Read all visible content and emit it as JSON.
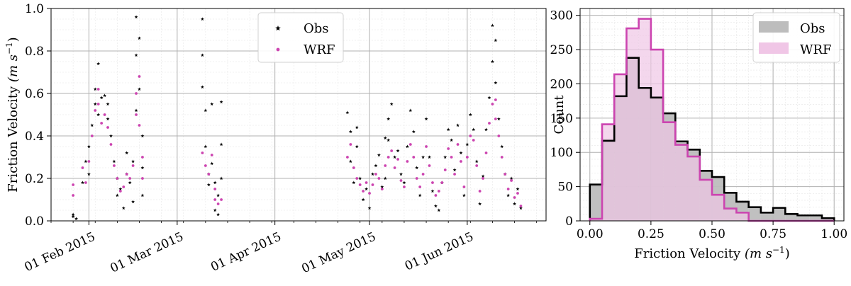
{
  "chart_data": [
    {
      "type": "scatter",
      "xlabel": "",
      "ylabel_main": "Friction Velocity ",
      "ylabel_unit": "(m s",
      "ylabel_exp": "−1",
      "ylabel_close": ")",
      "ylim": [
        0,
        1.0
      ],
      "x_range_dates": [
        "2015-01-20",
        "2015-06-26"
      ],
      "xtick_dates": [
        "2015-02-01",
        "2015-03-01",
        "2015-04-01",
        "2015-05-01",
        "2015-06-01"
      ],
      "xtick_labels": [
        "01 Feb 2015",
        "01 Mar 2015",
        "01 Apr 2015",
        "01 May 2015",
        "01 Jun 2015"
      ],
      "yticks": [
        0.0,
        0.2,
        0.4,
        0.6,
        0.8,
        1.0
      ],
      "ytick_labels": [
        "0.0",
        "0.2",
        "0.4",
        "0.6",
        "0.8",
        "1.0"
      ],
      "grid": true,
      "legend": "top-center",
      "series": [
        {
          "name": "Obs",
          "color": "#000000",
          "marker": "star",
          "points": [
            [
              "2015-01-27",
              0.03
            ],
            [
              "2015-01-27",
              0.02
            ],
            [
              "2015-01-28",
              0.01
            ],
            [
              "2015-01-30",
              0.18
            ],
            [
              "2015-01-31",
              0.28
            ],
            [
              "2015-02-01",
              0.35
            ],
            [
              "2015-02-01",
              0.22
            ],
            [
              "2015-02-02",
              0.45
            ],
            [
              "2015-02-03",
              0.55
            ],
            [
              "2015-02-03",
              0.62
            ],
            [
              "2015-02-04",
              0.74
            ],
            [
              "2015-02-04",
              0.5
            ],
            [
              "2015-02-05",
              0.58
            ],
            [
              "2015-02-06",
              0.59
            ],
            [
              "2015-02-07",
              0.55
            ],
            [
              "2015-02-07",
              0.48
            ],
            [
              "2015-02-08",
              0.4
            ],
            [
              "2015-02-09",
              0.28
            ],
            [
              "2015-02-10",
              0.2
            ],
            [
              "2015-02-10",
              0.12
            ],
            [
              "2015-02-11",
              0.15
            ],
            [
              "2015-02-12",
              0.06
            ],
            [
              "2015-02-13",
              0.22
            ],
            [
              "2015-02-13",
              0.32
            ],
            [
              "2015-02-14",
              0.18
            ],
            [
              "2015-02-15",
              0.28
            ],
            [
              "2015-02-15",
              0.09
            ],
            [
              "2015-02-16",
              0.52
            ],
            [
              "2015-02-16",
              0.78
            ],
            [
              "2015-02-16",
              0.96
            ],
            [
              "2015-02-17",
              0.86
            ],
            [
              "2015-02-17",
              0.62
            ],
            [
              "2015-02-18",
              0.4
            ],
            [
              "2015-02-18",
              0.12
            ],
            [
              "2015-02-18",
              0.25
            ],
            [
              "2015-03-09",
              0.95
            ],
            [
              "2015-03-09",
              0.78
            ],
            [
              "2015-03-09",
              0.63
            ],
            [
              "2015-03-10",
              0.52
            ],
            [
              "2015-03-10",
              0.35
            ],
            [
              "2015-03-11",
              0.22
            ],
            [
              "2015-03-11",
              0.17
            ],
            [
              "2015-03-12",
              0.27
            ],
            [
              "2015-03-12",
              0.55
            ],
            [
              "2015-03-13",
              0.18
            ],
            [
              "2015-03-13",
              0.05
            ],
            [
              "2015-03-14",
              0.03
            ],
            [
              "2015-03-14",
              0.12
            ],
            [
              "2015-03-15",
              0.56
            ],
            [
              "2015-03-15",
              0.2
            ],
            [
              "2015-03-15",
              0.36
            ],
            [
              "2015-04-24",
              0.51
            ],
            [
              "2015-04-25",
              0.42
            ],
            [
              "2015-04-25",
              0.28
            ],
            [
              "2015-04-26",
              0.18
            ],
            [
              "2015-04-27",
              0.44
            ],
            [
              "2015-04-27",
              0.35
            ],
            [
              "2015-04-28",
              0.2
            ],
            [
              "2015-04-29",
              0.1
            ],
            [
              "2015-04-30",
              0.15
            ],
            [
              "2015-05-01",
              0.06
            ],
            [
              "2015-05-02",
              0.22
            ],
            [
              "2015-05-03",
              0.26
            ],
            [
              "2015-05-04",
              0.31
            ],
            [
              "2015-05-05",
              0.16
            ],
            [
              "2015-05-06",
              0.39
            ],
            [
              "2015-05-06",
              0.2
            ],
            [
              "2015-05-07",
              0.48
            ],
            [
              "2015-05-07",
              0.38
            ],
            [
              "2015-05-08",
              0.55
            ],
            [
              "2015-05-09",
              0.3
            ],
            [
              "2015-05-10",
              0.33
            ],
            [
              "2015-05-11",
              0.22
            ],
            [
              "2015-05-12",
              0.18
            ],
            [
              "2015-05-13",
              0.35
            ],
            [
              "2015-05-14",
              0.52
            ],
            [
              "2015-05-15",
              0.42
            ],
            [
              "2015-05-16",
              0.25
            ],
            [
              "2015-05-17",
              0.12
            ],
            [
              "2015-05-18",
              0.3
            ],
            [
              "2015-05-19",
              0.48
            ],
            [
              "2015-05-20",
              0.3
            ],
            [
              "2015-05-21",
              0.14
            ],
            [
              "2015-05-22",
              0.07
            ],
            [
              "2015-05-23",
              0.05
            ],
            [
              "2015-05-24",
              0.18
            ],
            [
              "2015-05-25",
              0.3
            ],
            [
              "2015-05-26",
              0.43
            ],
            [
              "2015-05-27",
              0.38
            ],
            [
              "2015-05-28",
              0.24
            ],
            [
              "2015-05-29",
              0.45
            ],
            [
              "2015-05-30",
              0.32
            ],
            [
              "2015-05-31",
              0.12
            ],
            [
              "2015-06-01",
              0.36
            ],
            [
              "2015-06-02",
              0.5
            ],
            [
              "2015-06-03",
              0.43
            ],
            [
              "2015-06-04",
              0.28
            ],
            [
              "2015-06-05",
              0.08
            ],
            [
              "2015-06-06",
              0.21
            ],
            [
              "2015-06-07",
              0.43
            ],
            [
              "2015-06-08",
              0.58
            ],
            [
              "2015-06-09",
              0.75
            ],
            [
              "2015-06-09",
              0.92
            ],
            [
              "2015-06-10",
              0.85
            ],
            [
              "2015-06-10",
              0.65
            ],
            [
              "2015-06-11",
              0.48
            ],
            [
              "2015-06-12",
              0.35
            ],
            [
              "2015-06-13",
              0.22
            ],
            [
              "2015-06-14",
              0.12
            ],
            [
              "2015-06-15",
              0.2
            ],
            [
              "2015-06-16",
              0.08
            ],
            [
              "2015-06-17",
              0.15
            ],
            [
              "2015-06-18",
              0.06
            ]
          ]
        },
        {
          "name": "WRF",
          "color": "#cc44b0",
          "marker": "dot",
          "points": [
            [
              "2015-01-27",
              0.17
            ],
            [
              "2015-01-27",
              0.12
            ],
            [
              "2015-01-30",
              0.25
            ],
            [
              "2015-01-31",
              0.18
            ],
            [
              "2015-02-01",
              0.28
            ],
            [
              "2015-02-02",
              0.4
            ],
            [
              "2015-02-03",
              0.52
            ],
            [
              "2015-02-04",
              0.62
            ],
            [
              "2015-02-04",
              0.55
            ],
            [
              "2015-02-05",
              0.46
            ],
            [
              "2015-02-06",
              0.5
            ],
            [
              "2015-02-07",
              0.44
            ],
            [
              "2015-02-08",
              0.36
            ],
            [
              "2015-02-09",
              0.26
            ],
            [
              "2015-02-10",
              0.2
            ],
            [
              "2015-02-11",
              0.14
            ],
            [
              "2015-02-12",
              0.16
            ],
            [
              "2015-02-13",
              0.22
            ],
            [
              "2015-02-14",
              0.2
            ],
            [
              "2015-02-15",
              0.26
            ],
            [
              "2015-02-16",
              0.5
            ],
            [
              "2015-02-16",
              0.6
            ],
            [
              "2015-02-17",
              0.68
            ],
            [
              "2015-02-17",
              0.45
            ],
            [
              "2015-02-18",
              0.3
            ],
            [
              "2015-02-18",
              0.2
            ],
            [
              "2015-03-09",
              0.32
            ],
            [
              "2015-03-10",
              0.26
            ],
            [
              "2015-03-11",
              0.22
            ],
            [
              "2015-03-12",
              0.31
            ],
            [
              "2015-03-13",
              0.15
            ],
            [
              "2015-03-13",
              0.1
            ],
            [
              "2015-03-14",
              0.08
            ],
            [
              "2015-03-15",
              0.1
            ],
            [
              "2015-04-24",
              0.3
            ],
            [
              "2015-04-25",
              0.36
            ],
            [
              "2015-04-26",
              0.25
            ],
            [
              "2015-04-27",
              0.2
            ],
            [
              "2015-04-28",
              0.17
            ],
            [
              "2015-04-29",
              0.14
            ],
            [
              "2015-04-30",
              0.18
            ],
            [
              "2015-05-01",
              0.13
            ],
            [
              "2015-05-02",
              0.17
            ],
            [
              "2015-05-03",
              0.22
            ],
            [
              "2015-05-04",
              0.2
            ],
            [
              "2015-05-05",
              0.15
            ],
            [
              "2015-05-06",
              0.26
            ],
            [
              "2015-05-07",
              0.3
            ],
            [
              "2015-05-08",
              0.33
            ],
            [
              "2015-05-09",
              0.25
            ],
            [
              "2015-05-10",
              0.29
            ],
            [
              "2015-05-11",
              0.19
            ],
            [
              "2015-05-12",
              0.16
            ],
            [
              "2015-05-13",
              0.28
            ],
            [
              "2015-05-14",
              0.36
            ],
            [
              "2015-05-15",
              0.3
            ],
            [
              "2015-05-16",
              0.2
            ],
            [
              "2015-05-17",
              0.16
            ],
            [
              "2015-05-18",
              0.22
            ],
            [
              "2015-05-19",
              0.35
            ],
            [
              "2015-05-20",
              0.26
            ],
            [
              "2015-05-21",
              0.18
            ],
            [
              "2015-05-22",
              0.12
            ],
            [
              "2015-05-23",
              0.14
            ],
            [
              "2015-05-24",
              0.18
            ],
            [
              "2015-05-25",
              0.24
            ],
            [
              "2015-05-26",
              0.34
            ],
            [
              "2015-05-27",
              0.3
            ],
            [
              "2015-05-28",
              0.22
            ],
            [
              "2015-05-29",
              0.36
            ],
            [
              "2015-05-30",
              0.28
            ],
            [
              "2015-05-31",
              0.16
            ],
            [
              "2015-06-01",
              0.3
            ],
            [
              "2015-06-02",
              0.4
            ],
            [
              "2015-06-03",
              0.38
            ],
            [
              "2015-06-04",
              0.26
            ],
            [
              "2015-06-05",
              0.14
            ],
            [
              "2015-06-06",
              0.2
            ],
            [
              "2015-06-07",
              0.32
            ],
            [
              "2015-06-08",
              0.46
            ],
            [
              "2015-06-09",
              0.55
            ],
            [
              "2015-06-10",
              0.57
            ],
            [
              "2015-06-10",
              0.48
            ],
            [
              "2015-06-11",
              0.4
            ],
            [
              "2015-06-12",
              0.3
            ],
            [
              "2015-06-13",
              0.22
            ],
            [
              "2015-06-14",
              0.15
            ],
            [
              "2015-06-15",
              0.19
            ],
            [
              "2015-06-16",
              0.11
            ],
            [
              "2015-06-17",
              0.13
            ],
            [
              "2015-06-18",
              0.07
            ]
          ]
        }
      ]
    },
    {
      "type": "histogram",
      "xlabel_main": "Friction Velocity ",
      "xlabel_unit": "(m s",
      "xlabel_exp": "−1",
      "xlabel_close": ")",
      "ylabel": "Count",
      "xlim": [
        -0.04,
        1.04
      ],
      "ylim": [
        0,
        310
      ],
      "xticks": [
        0.0,
        0.25,
        0.5,
        0.75,
        1.0
      ],
      "xtick_labels": [
        "0.00",
        "0.25",
        "0.50",
        "0.75",
        "1.00"
      ],
      "yticks": [
        0,
        50,
        100,
        150,
        200,
        250,
        300
      ],
      "ytick_labels": [
        "0",
        "50",
        "100",
        "150",
        "200",
        "250",
        "300"
      ],
      "grid": true,
      "legend": "top-right",
      "bin_edges": [
        0.0,
        0.05,
        0.1,
        0.15,
        0.2,
        0.25,
        0.3,
        0.35,
        0.4,
        0.45,
        0.5,
        0.55,
        0.6,
        0.65,
        0.7,
        0.75,
        0.8,
        0.85,
        0.9,
        0.95,
        1.0
      ],
      "series": [
        {
          "name": "Obs",
          "color": "#000000",
          "fill": "#bdbdbd",
          "counts": [
            53,
            117,
            182,
            238,
            194,
            180,
            157,
            116,
            104,
            73,
            64,
            41,
            28,
            20,
            12,
            19,
            10,
            8,
            8,
            4
          ]
        },
        {
          "name": "WRF",
          "color": "#cc44b0",
          "fill": "#f0c6e6",
          "counts": [
            3,
            141,
            214,
            281,
            295,
            250,
            144,
            111,
            94,
            60,
            38,
            18,
            12,
            0,
            0,
            0,
            0,
            0,
            0,
            0
          ]
        }
      ]
    }
  ]
}
